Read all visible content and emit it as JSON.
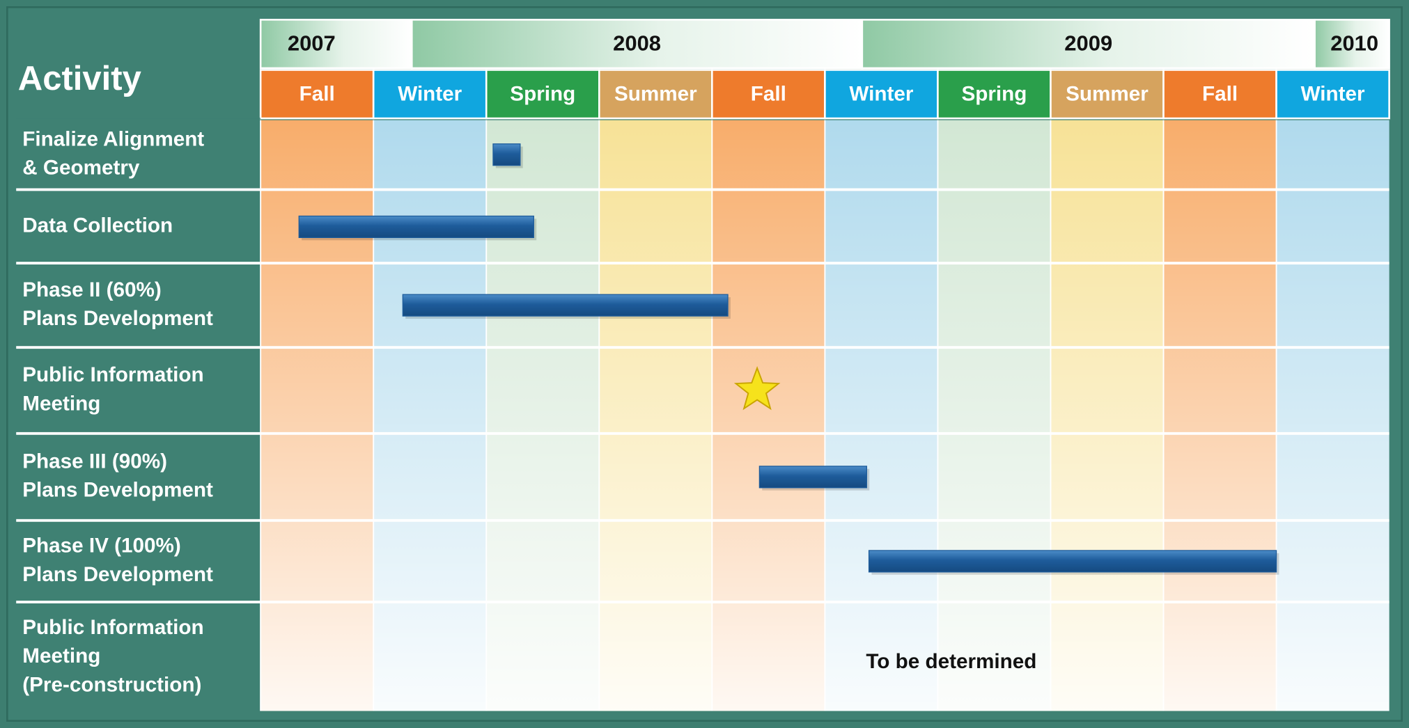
{
  "chart_data": {
    "type": "gantt",
    "title": "Activity",
    "xlim": [
      0,
      10
    ],
    "years": [
      {
        "label": "2007",
        "span": [
          0,
          1.34
        ]
      },
      {
        "label": "2008",
        "span": [
          1.34,
          5.33
        ]
      },
      {
        "label": "2009",
        "span": [
          5.33,
          9.34
        ]
      },
      {
        "label": "2010",
        "span": [
          9.34,
          10
        ]
      }
    ],
    "seasons": [
      "Fall",
      "Winter",
      "Spring",
      "Summer",
      "Fall",
      "Winter",
      "Spring",
      "Summer",
      "Fall",
      "Winter"
    ],
    "season_styles": {
      "Fall": {
        "header": "#ee7b2c",
        "body": "#f8ad6b"
      },
      "Winter": {
        "header": "#10a6df",
        "body": "#b0daed"
      },
      "Spring": {
        "header": "#2a9f4b",
        "body": "#d2e7d4"
      },
      "Summer": {
        "header": "#d6a35e",
        "body": "#f7e297"
      }
    },
    "bar_color": "#1e5c9b",
    "milestone_color": "#f6e21c",
    "activities": [
      {
        "label": [
          "Finalize Alignment",
          "& Geometry"
        ],
        "span": [
          2.06,
          2.3
        ]
      },
      {
        "label": [
          "Data Collection"
        ],
        "span": [
          0.34,
          2.42
        ]
      },
      {
        "label": [
          "Phase II (60%)",
          "Plans Development"
        ],
        "span": [
          1.26,
          4.14
        ]
      },
      {
        "label": [
          "Public Information",
          "Meeting"
        ],
        "milestone": 4.4
      },
      {
        "label": [
          "Phase III (90%)",
          "Plans Development"
        ],
        "span": [
          4.42,
          5.37
        ]
      },
      {
        "label": [
          "Phase IV (100%)",
          "Plans Development"
        ],
        "span": [
          5.39,
          9.0
        ]
      },
      {
        "label": [
          "Public Information",
          "Meeting",
          "(Pre-construction)"
        ],
        "note": "To be determined"
      }
    ]
  }
}
